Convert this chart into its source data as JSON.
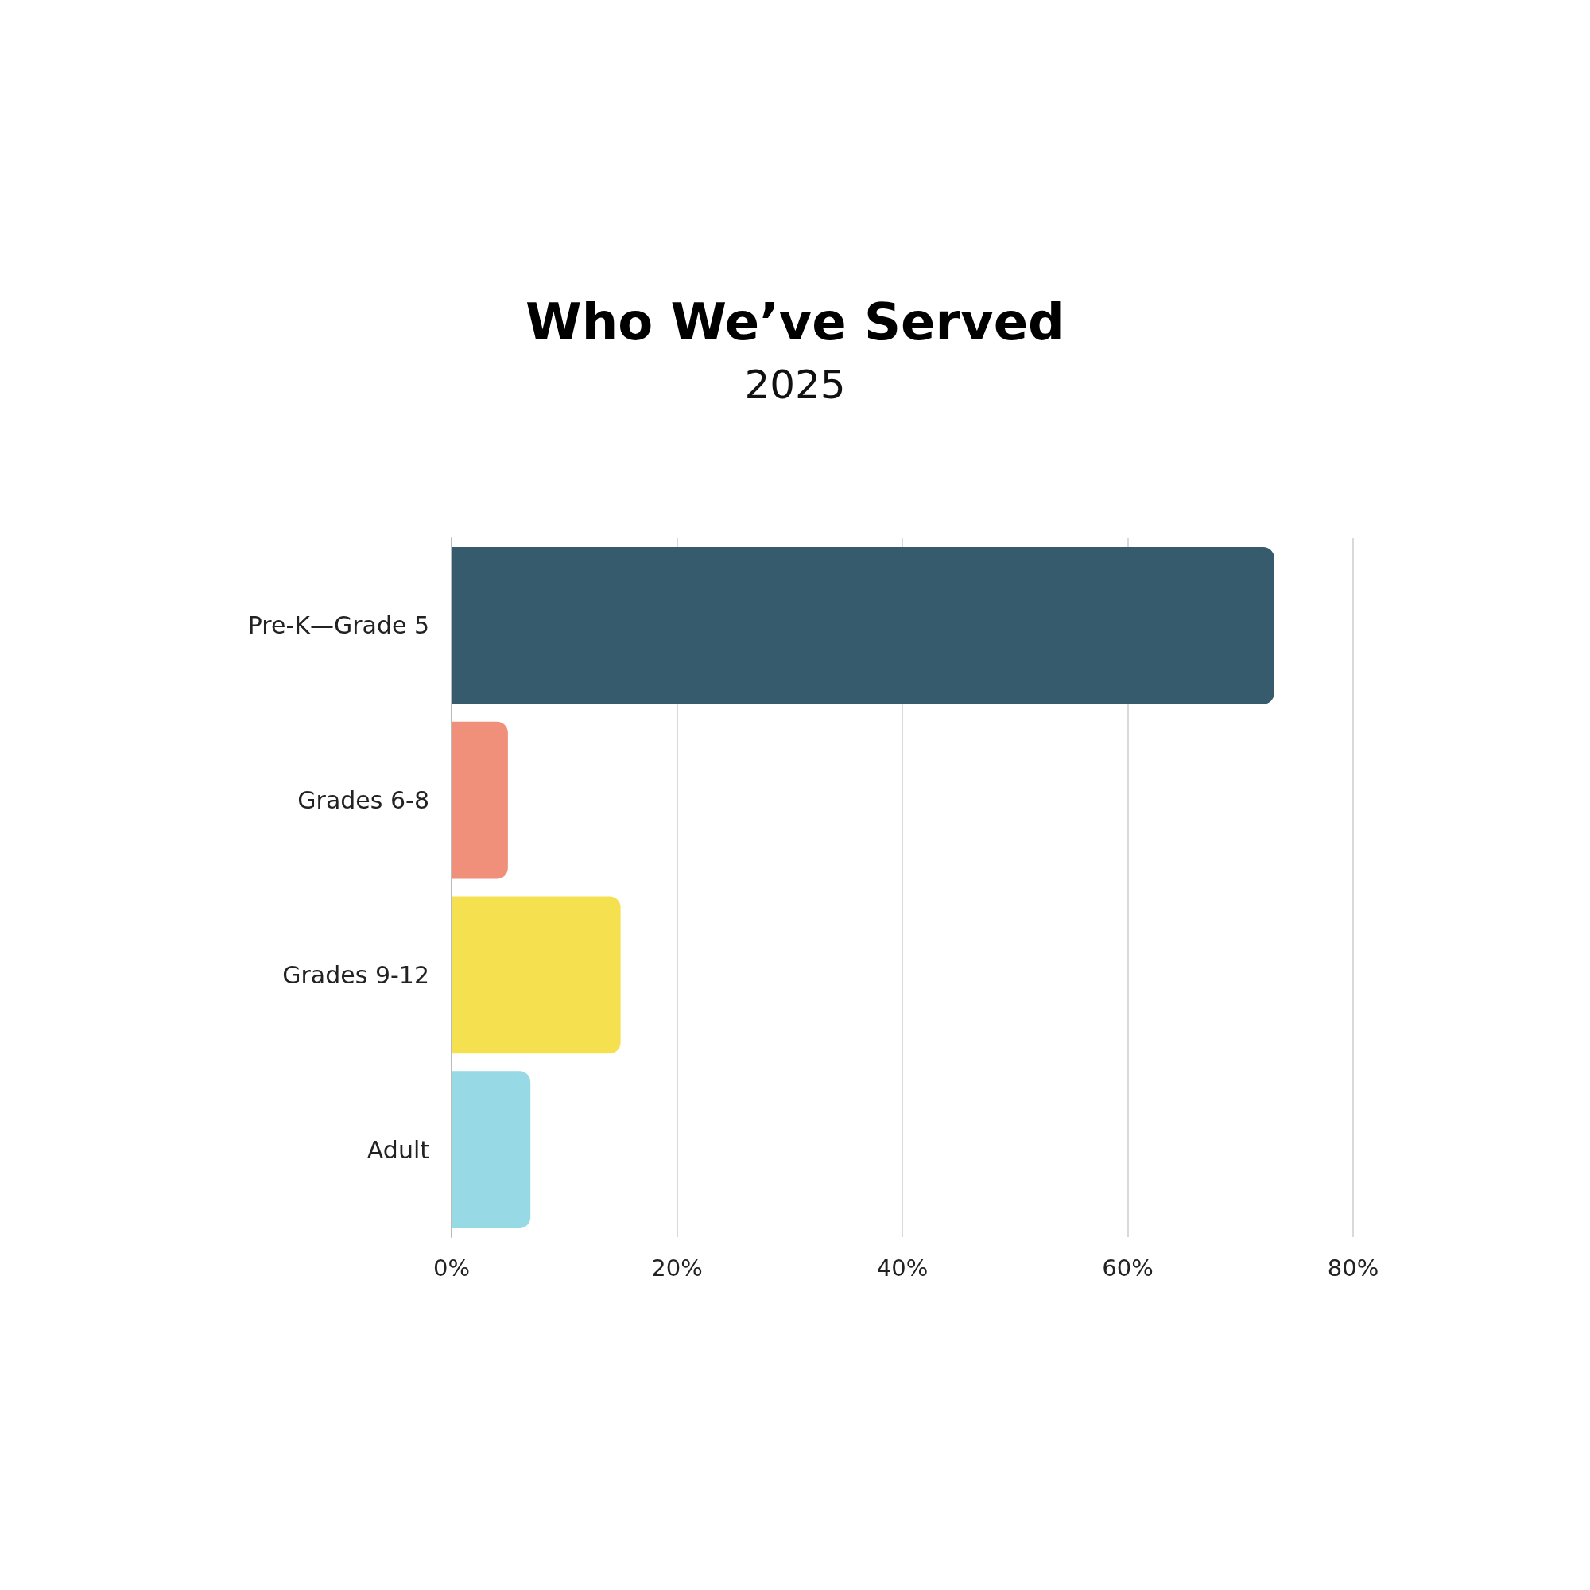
{
  "chart_data": {
    "type": "bar",
    "orientation": "horizontal",
    "title": "Who We’ve Served",
    "subtitle": "2025",
    "categories": [
      "Pre-K—Grade 5",
      "Grades 6-8",
      "Grades 9-12",
      "Adult"
    ],
    "values": [
      73,
      5,
      15,
      7
    ],
    "colors": [
      "#365b6d",
      "#f0907b",
      "#f5e050",
      "#98d9e6"
    ],
    "xlim": [
      0,
      80
    ],
    "xticks": [
      {
        "value": 0,
        "label": "0%"
      },
      {
        "value": 20,
        "label": "20%"
      },
      {
        "value": 40,
        "label": "40%"
      },
      {
        "value": 60,
        "label": "60%"
      },
      {
        "value": 80,
        "label": "80%"
      }
    ],
    "grid": "x"
  }
}
